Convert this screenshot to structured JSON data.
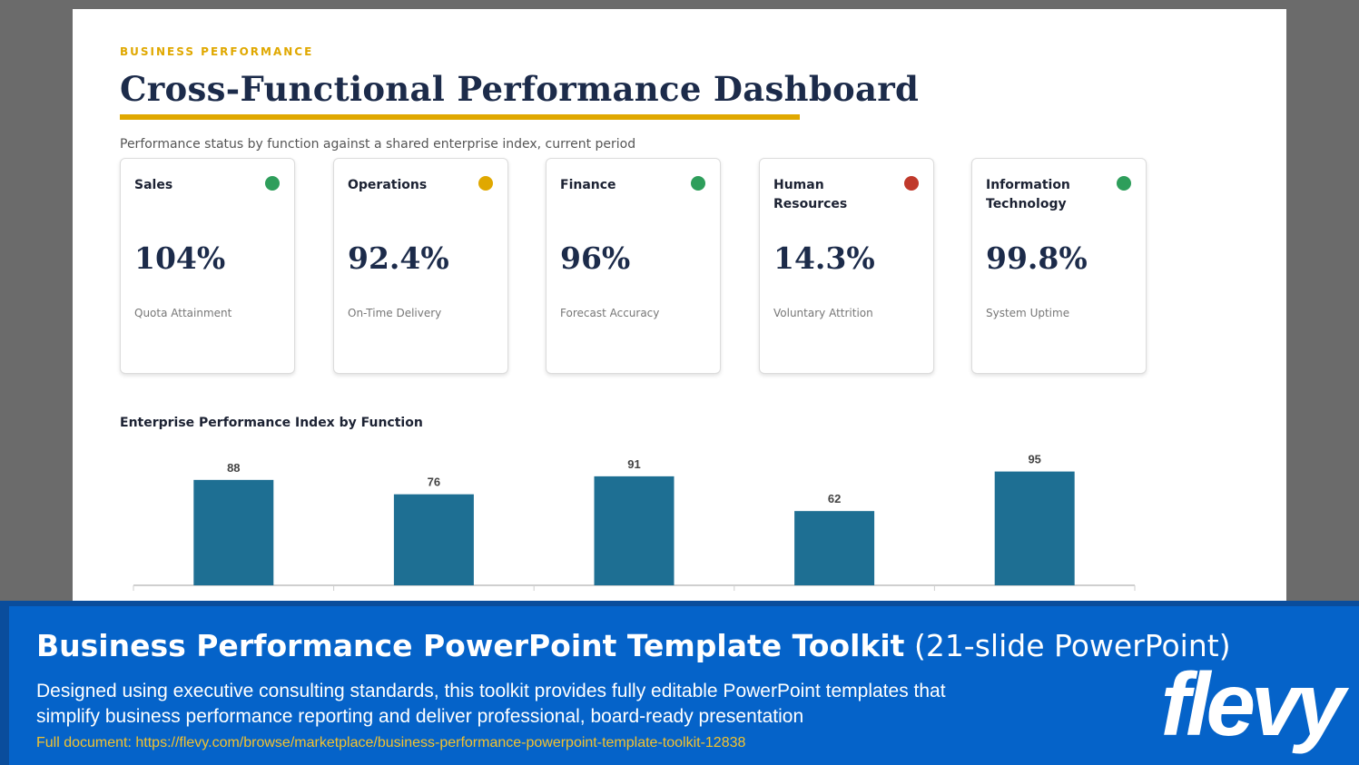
{
  "slide": {
    "eyebrow": "BUSINESS PERFORMANCE",
    "title": "Cross-Functional Performance Dashboard",
    "subtitle": "Performance status by function against a shared enterprise index, current period",
    "cards": [
      {
        "function": "Sales",
        "value": "104%",
        "metric": "Quota Attainment",
        "status_color": "#2e9e5b"
      },
      {
        "function": "Operations",
        "value": "92.4%",
        "metric": "On-Time Delivery",
        "status_color": "#e0a800"
      },
      {
        "function": "Finance",
        "value": "96%",
        "metric": "Forecast Accuracy",
        "status_color": "#2e9e5b"
      },
      {
        "function": "Human Resources",
        "value": "14.3%",
        "metric": "Voluntary Attrition",
        "status_color": "#c0392b"
      },
      {
        "function": "Information Technology",
        "value": "99.8%",
        "metric": "System Uptime",
        "status_color": "#2e9e5b"
      }
    ]
  },
  "chart_data": {
    "type": "bar",
    "title": "Enterprise Performance Index by Function",
    "categories": [
      "",
      "",
      "",
      "",
      ""
    ],
    "values": [
      88,
      76,
      91,
      62,
      95
    ],
    "ylim": [
      0,
      100
    ],
    "grid": false,
    "bar_color": "#1e6f93"
  },
  "banner": {
    "title_bold": "Business Performance PowerPoint Template Toolkit",
    "title_rest": " (21-slide PowerPoint)",
    "description": "Designed using executive consulting standards, this toolkit provides fully editable PowerPoint templates that simplify business performance reporting and deliver professional, board-ready presentation",
    "link": "Full document: https://flevy.com/browse/marketplace/business-performance-powerpoint-template-toolkit-12838",
    "logo": "flevy"
  }
}
